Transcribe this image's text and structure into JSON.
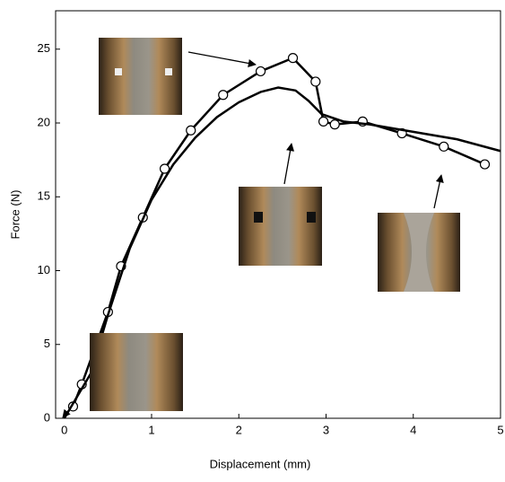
{
  "chart_data": {
    "type": "line",
    "x_label": "Displacement (mm)",
    "y_label": "Force (N)",
    "xlim": [
      -0.1,
      5
    ],
    "ylim": [
      0,
      27.6
    ],
    "xticks": [
      0,
      1,
      2,
      3,
      4,
      5
    ],
    "yticks": [
      0,
      5,
      10,
      15,
      20,
      25
    ],
    "series": [
      {
        "color": "#000000",
        "marker": "circle",
        "x": [
          0.1,
          0.2,
          0.5,
          0.65,
          0.9,
          1.15,
          1.45,
          1.82,
          2.25,
          2.62,
          2.88,
          2.97,
          3.1,
          3.42,
          3.87,
          4.35,
          4.82
        ],
        "values": [
          0.8,
          2.3,
          7.2,
          10.3,
          13.6,
          16.9,
          19.5,
          21.9,
          23.5,
          24.4,
          22.8,
          20.1,
          19.9,
          20.1,
          19.3,
          18.4,
          17.2
        ]
      },
      {
        "color": "#000000",
        "marker": "none",
        "x": [
          0,
          0.3,
          0.5,
          0.75,
          1,
          1.25,
          1.5,
          1.75,
          2,
          2.25,
          2.45,
          2.65,
          2.8,
          2.95,
          3.2,
          3.5,
          4,
          4.5,
          5
        ],
        "values": [
          0,
          3,
          7,
          11.5,
          14.8,
          17.2,
          19,
          20.4,
          21.4,
          22.1,
          22.4,
          22.2,
          21.5,
          20.6,
          20.1,
          19.9,
          19.4,
          18.9,
          18.1
        ]
      }
    ]
  }
}
